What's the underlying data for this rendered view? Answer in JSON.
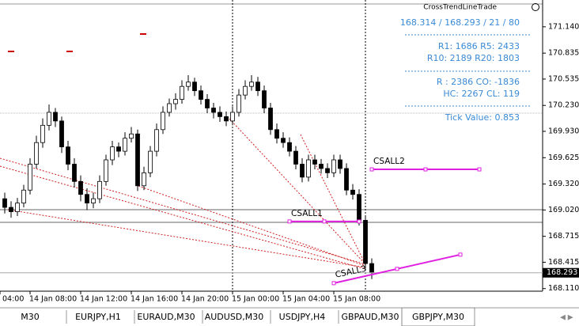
{
  "chart_data": {
    "type": "candlestick",
    "categories": [
      "04:00",
      null,
      null,
      null,
      null,
      null,
      null,
      null,
      "14 Jan 08:00",
      null,
      null,
      null,
      null,
      null,
      null,
      null,
      "14 Jan 12:00",
      null,
      null,
      null,
      null,
      null,
      null,
      null,
      "14 Jan 16:00",
      null,
      null,
      null,
      null,
      null,
      null,
      null,
      "14 Jan 20:00",
      null,
      null,
      null,
      null,
      null,
      null,
      null,
      "15 Jan 00:00",
      null,
      null,
      null,
      null,
      null,
      null,
      null,
      "15 Jan 04:00",
      null,
      null,
      null,
      null,
      null,
      null,
      null,
      "15 Jan 08:00",
      null,
      null,
      null,
      null,
      null,
      null
    ],
    "open": [
      null,
      null,
      null,
      null,
      169.15,
      169.05,
      169.0,
      169.1,
      169.25,
      169.55,
      169.8,
      170.0,
      170.15,
      170.05,
      169.75,
      169.55,
      169.35,
      169.2,
      169.1,
      169.15,
      169.35,
      169.6,
      169.75,
      169.7,
      169.85,
      169.9,
      169.3,
      169.45,
      169.7,
      169.95,
      170.15,
      170.25,
      170.3,
      170.45,
      170.5,
      170.4,
      170.3,
      170.2,
      170.15,
      170.1,
      170.05,
      170.15,
      170.35,
      170.45,
      170.5,
      170.4,
      170.2,
      169.95,
      169.85,
      169.8,
      169.7,
      169.55,
      169.4,
      169.6,
      169.55,
      169.5,
      169.45,
      169.6,
      169.5,
      169.25,
      169.2,
      168.9,
      168.4
    ],
    "high": [
      null,
      null,
      null,
      null,
      169.22,
      169.12,
      169.16,
      169.31,
      169.62,
      169.88,
      170.08,
      170.24,
      170.2,
      170.1,
      169.82,
      169.62,
      169.42,
      169.27,
      169.22,
      169.42,
      169.66,
      169.82,
      169.8,
      169.92,
      169.98,
      169.95,
      169.52,
      169.76,
      170.02,
      170.22,
      170.31,
      170.37,
      170.52,
      170.58,
      170.55,
      170.46,
      170.36,
      170.26,
      170.22,
      170.16,
      170.22,
      170.42,
      170.52,
      170.58,
      170.56,
      170.46,
      170.26,
      170.02,
      169.92,
      169.86,
      169.76,
      169.62,
      169.66,
      169.66,
      169.61,
      169.56,
      169.66,
      169.66,
      169.56,
      169.32,
      169.26,
      168.96,
      168.46
    ],
    "low": [
      null,
      null,
      null,
      null,
      168.98,
      168.93,
      168.95,
      169.05,
      169.2,
      169.5,
      169.74,
      169.94,
      169.98,
      169.68,
      169.48,
      169.28,
      169.12,
      169.02,
      169.04,
      169.1,
      169.3,
      169.54,
      169.63,
      169.65,
      169.8,
      169.24,
      169.25,
      169.4,
      169.64,
      169.9,
      170.1,
      170.18,
      170.25,
      170.4,
      170.34,
      170.24,
      170.14,
      170.08,
      170.04,
      169.99,
      170.0,
      170.1,
      170.3,
      170.4,
      170.34,
      170.14,
      169.89,
      169.79,
      169.74,
      169.64,
      169.49,
      169.34,
      169.35,
      169.49,
      169.44,
      169.39,
      169.4,
      169.44,
      169.19,
      169.14,
      168.84,
      168.34,
      168.22
    ],
    "close": [
      null,
      null,
      null,
      null,
      169.05,
      169.0,
      169.1,
      169.25,
      169.55,
      169.8,
      170.0,
      170.15,
      170.05,
      169.75,
      169.55,
      169.35,
      169.2,
      169.1,
      169.15,
      169.35,
      169.6,
      169.75,
      169.7,
      169.85,
      169.9,
      169.3,
      169.45,
      169.7,
      169.95,
      170.15,
      170.25,
      170.3,
      170.45,
      170.5,
      170.4,
      170.3,
      170.2,
      170.15,
      170.1,
      170.05,
      170.15,
      170.35,
      170.45,
      170.5,
      170.4,
      170.2,
      169.95,
      169.85,
      169.8,
      169.7,
      169.55,
      169.4,
      169.6,
      169.55,
      169.5,
      169.45,
      169.6,
      169.5,
      169.25,
      169.2,
      168.9,
      168.4,
      168.293
    ],
    "up_color": "#ffffff",
    "down_color": "#000000",
    "edge_color": "#000000",
    "ylim": [
      168.08,
      171.45
    ],
    "yticks": [
      {
        "value": 171.14,
        "label": "171.140"
      },
      170.835,
      170.535,
      {
        "value": 170.23,
        "label": "170.230"
      },
      {
        "value": 169.93,
        "label": "169.930"
      },
      169.625,
      {
        "value": 169.32,
        "label": "169.320"
      },
      {
        "value": 169.02,
        "label": "169.020"
      },
      168.715,
      168.415,
      {
        "value": 168.11,
        "label": "168.110"
      }
    ],
    "trendlines": [
      {
        "name": "CSALL2",
        "x": [
          62,
          79
        ],
        "price": [
          169.49,
          169.49
        ],
        "color": "#e020e0"
      },
      {
        "name": "CSALL1",
        "x": [
          49,
          60
        ],
        "price": [
          168.887,
          168.887
        ],
        "color": "#e020e0"
      },
      {
        "name": "CSALL3",
        "x": [
          56,
          76
        ],
        "price": [
          168.173,
          168.503
        ],
        "color": "#e020e0"
      }
    ]
  },
  "info_panel": {
    "title": "CrossTrendLineTrade",
    "lines": [
      "168.314 / 168.293 / 21 / 80",
      "R1:  1686  R5:  2433",
      "R10: 2189  R20: 1803",
      "R : 2386  CO: -1836",
      "HC: 2267  CL: 119",
      "Tick Value: 0.853"
    ]
  },
  "tabs": [
    "M30",
    "EURJPY,H1",
    "EURAUD,M30",
    "AUDUSD,M30",
    "USDJPY,H4",
    "GBPAUD,M30",
    "GBPJPY,M30"
  ]
}
